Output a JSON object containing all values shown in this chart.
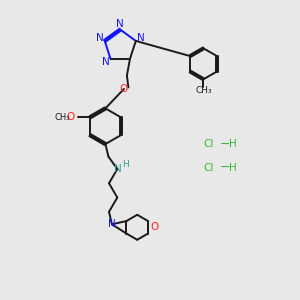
{
  "bg_color": "#e8e8e8",
  "bond_color": "#1a1a1a",
  "N_color": "#1414ff",
  "O_color": "#ff2020",
  "N_amine_color": "#3a9999",
  "HCl_color": "#3ab83a",
  "lw": 1.4,
  "fig_bg": "#e8e8e8",
  "xlim": [
    0,
    10
  ],
  "ylim": [
    0,
    10
  ]
}
